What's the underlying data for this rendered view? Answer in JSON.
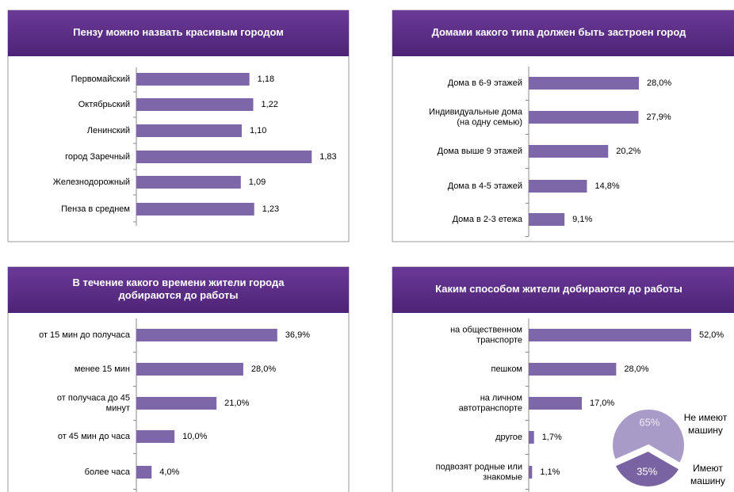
{
  "chart_data": [
    {
      "type": "bar",
      "title": "Пензу можно назвать красивым городом",
      "categories": [
        "Первомайский",
        "Октябрьский",
        "Ленинский",
        "город Заречный",
        "Железнодорожный",
        "Пенза в среднем"
      ],
      "values": [
        1.18,
        1.22,
        1.1,
        1.83,
        1.09,
        1.23
      ],
      "value_labels": [
        "1,18",
        "1,22",
        "1,10",
        "1,83",
        "1,09",
        "1,23"
      ],
      "color": "#7d67a8",
      "xlim": [
        0,
        2.2
      ]
    },
    {
      "type": "bar",
      "title": "Домами какого типа должен быть застроен город",
      "categories": [
        "Дома в 6-9 этажей",
        "Индивидуальные дома\n(на одну семью)",
        "Дома выше 9 этажей",
        "Дома в 4-5 этажей",
        "Дома в 2-3 етежа"
      ],
      "values": [
        28.0,
        27.9,
        20.2,
        14.8,
        9.1
      ],
      "value_labels": [
        "28,0%",
        "27,9%",
        "20,2%",
        "14,8%",
        "9,1%"
      ],
      "color": "#7d67a8",
      "xlim": [
        0,
        55
      ]
    },
    {
      "type": "bar",
      "title": "В течение какого времени жители города\nдобираются  до работы",
      "categories": [
        "от 15 мин до получаса",
        "менее 15 мин",
        "от получаса  до 45\nминут",
        "от 45 мин до часа",
        "более часа"
      ],
      "values": [
        36.9,
        28.0,
        21.0,
        10.0,
        4.0
      ],
      "value_labels": [
        "36,9%",
        "28,0%",
        "21,0%",
        "10,0%",
        "4,0%"
      ],
      "color": "#7d67a8",
      "xlim": [
        0,
        55
      ]
    },
    {
      "type": "bar",
      "title": "Каким способом жители добираются до работы",
      "categories": [
        "на общественном\nтранспорте",
        "пешком",
        "на личном\nавтотранспорте",
        "другое",
        "подвозят родные или\nзнакомые"
      ],
      "values": [
        52.0,
        28.0,
        17.0,
        1.7,
        1.1
      ],
      "value_labels": [
        "52,0%",
        "28,0%",
        "17,0%",
        "1,7%",
        "1,1%"
      ],
      "color": "#7d67a8",
      "xlim": [
        0,
        69
      ]
    },
    {
      "type": "pie",
      "categories": [
        "Не имеют\nмашину",
        "Имеют\nмашину"
      ],
      "values": [
        65,
        35
      ],
      "value_labels": [
        "65%",
        "35%"
      ],
      "colors": [
        "#a99bc8",
        "#7a63a3"
      ]
    }
  ]
}
